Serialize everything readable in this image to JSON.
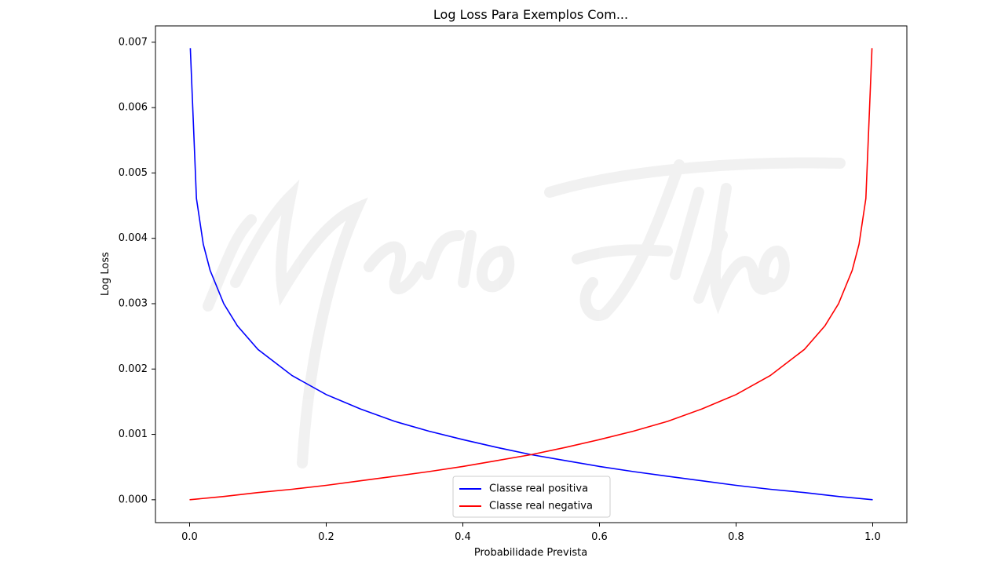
{
  "chart_data": {
    "type": "line",
    "title": "Log Loss Para Exemplos Com...",
    "xlabel": "Probabilidade Prevista",
    "ylabel": "Log Loss",
    "xlim": [
      -0.05,
      1.05
    ],
    "ylim": [
      -0.00035,
      0.00725
    ],
    "x_ticks": [
      0.0,
      0.2,
      0.4,
      0.6,
      0.8,
      1.0
    ],
    "x_tick_labels": [
      "0.0",
      "0.2",
      "0.4",
      "0.6",
      "0.8",
      "1.0"
    ],
    "y_ticks": [
      0.0,
      0.001,
      0.002,
      0.003,
      0.004,
      0.005,
      0.006,
      0.007
    ],
    "y_tick_labels": [
      "0.000",
      "0.001",
      "0.002",
      "0.003",
      "0.004",
      "0.005",
      "0.006",
      "0.007"
    ],
    "grid": false,
    "legend_position": "lower-center",
    "watermark": "Mario Filho",
    "series": [
      {
        "name": "Classe real positiva",
        "color": "#0000ff",
        "x": [
          0.001,
          0.01,
          0.02,
          0.03,
          0.05,
          0.07,
          0.1,
          0.15,
          0.2,
          0.25,
          0.3,
          0.35,
          0.4,
          0.45,
          0.5,
          0.55,
          0.6,
          0.65,
          0.7,
          0.75,
          0.8,
          0.85,
          0.9,
          0.95,
          1.0
        ],
        "y": [
          0.00691,
          0.00461,
          0.00391,
          0.00351,
          0.003,
          0.00266,
          0.0023,
          0.0019,
          0.00161,
          0.00139,
          0.0012,
          0.00105,
          0.00092,
          0.0008,
          0.00069,
          0.0006,
          0.00051,
          0.00043,
          0.00036,
          0.00029,
          0.00022,
          0.00016,
          0.00011,
          5e-05,
          0.0
        ]
      },
      {
        "name": "Classe real negativa",
        "color": "#ff0000",
        "x": [
          0.0,
          0.05,
          0.1,
          0.15,
          0.2,
          0.25,
          0.3,
          0.35,
          0.4,
          0.45,
          0.5,
          0.55,
          0.6,
          0.65,
          0.7,
          0.75,
          0.8,
          0.85,
          0.9,
          0.93,
          0.95,
          0.97,
          0.98,
          0.99,
          0.999
        ],
        "y": [
          0.0,
          5e-05,
          0.00011,
          0.00016,
          0.00022,
          0.00029,
          0.00036,
          0.00043,
          0.00051,
          0.0006,
          0.00069,
          0.0008,
          0.00092,
          0.00105,
          0.0012,
          0.00139,
          0.00161,
          0.0019,
          0.0023,
          0.00266,
          0.003,
          0.00351,
          0.00391,
          0.00461,
          0.00691
        ]
      }
    ]
  }
}
